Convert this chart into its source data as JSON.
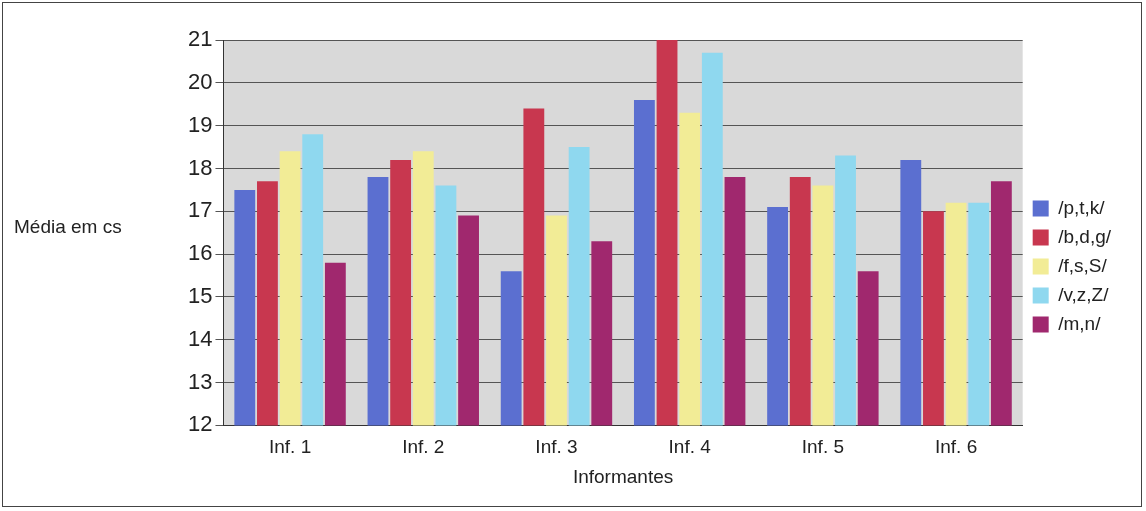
{
  "chart_data": {
    "type": "bar",
    "xlabel": "Informantes",
    "ylabel": "Média em cs",
    "categories": [
      "Inf. 1",
      "Inf. 2",
      "Inf. 3",
      "Inf. 4",
      "Inf. 5",
      "Inf. 6"
    ],
    "series": [
      {
        "name": "/p,t,k/",
        "color": "#5b6fd0",
        "values": [
          17.5,
          17.8,
          15.6,
          19.6,
          17.1,
          18.2
        ]
      },
      {
        "name": "/b,d,g/",
        "color": "#c8374f",
        "values": [
          17.7,
          18.2,
          19.4,
          21.0,
          17.8,
          17.0
        ]
      },
      {
        "name": "/f,s,S/",
        "color": "#f2ec96",
        "values": [
          18.4,
          18.4,
          16.9,
          19.3,
          17.6,
          17.2
        ]
      },
      {
        "name": "/v,z,Z/",
        "color": "#8fd8ef",
        "values": [
          18.8,
          17.6,
          18.5,
          20.7,
          18.3,
          17.2
        ]
      },
      {
        "name": "/m,n/",
        "color": "#a0286e",
        "values": [
          15.8,
          16.9,
          16.3,
          17.8,
          15.6,
          17.7
        ]
      }
    ],
    "ylim": [
      12,
      21
    ],
    "yticks": [
      12,
      13,
      14,
      15,
      16,
      17,
      18,
      19,
      20,
      21
    ],
    "grid": "y",
    "legend": "right"
  }
}
